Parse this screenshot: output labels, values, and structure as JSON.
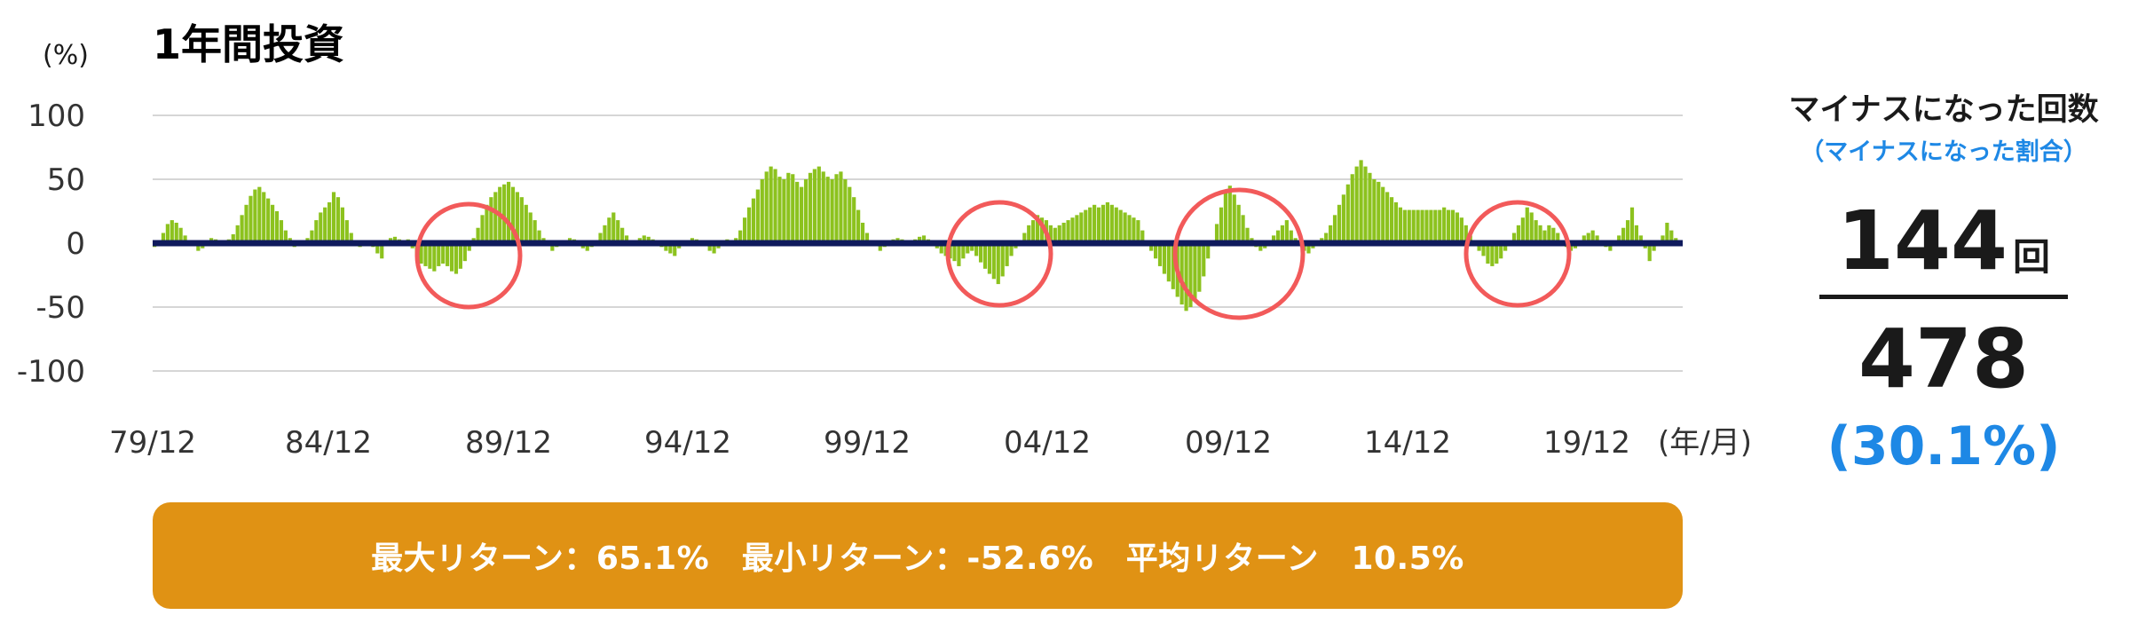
{
  "title": "1年間投資",
  "colors": {
    "bar": "#8cc21e",
    "zero_line": "#0f1a5c",
    "grid": "#d6d6d6",
    "circle": "#f25a5a",
    "stats_bg": "#e09214",
    "ratio_blue": "#1e88e5"
  },
  "chart_data": {
    "type": "bar",
    "title": "1年間投資",
    "ylabel": "(%)",
    "xlabel": "(年/月)",
    "ylim": [
      -100,
      100
    ],
    "yticks": [
      100,
      50,
      0,
      -50,
      -100
    ],
    "xtick_labels": [
      "79/12",
      "84/12",
      "89/12",
      "94/12",
      "99/12",
      "04/12",
      "09/12",
      "14/12",
      "19/12"
    ],
    "grid": true,
    "series": [
      {
        "values": [
          -3,
          2,
          8,
          15,
          18,
          16,
          12,
          6,
          2,
          -2,
          -6,
          -4,
          2,
          4,
          3,
          1,
          -2,
          3,
          7,
          14,
          22,
          30,
          37,
          42,
          44,
          40,
          35,
          30,
          25,
          18,
          10,
          4,
          -3,
          -2,
          1,
          4,
          10,
          18,
          24,
          28,
          32,
          40,
          36,
          28,
          18,
          8,
          -2,
          -3,
          1,
          0,
          -3,
          -8,
          -12,
          2,
          4,
          5,
          3,
          2,
          3,
          -4,
          -10,
          -16,
          -18,
          -20,
          -22,
          -18,
          -16,
          -18,
          -22,
          -24,
          -20,
          -14,
          -6,
          4,
          12,
          22,
          30,
          36,
          40,
          44,
          46,
          48,
          44,
          40,
          36,
          30,
          24,
          18,
          10,
          4,
          -2,
          -6,
          -3,
          1,
          2,
          4,
          3,
          1,
          -4,
          -6,
          -3,
          2,
          8,
          14,
          20,
          24,
          18,
          12,
          6,
          2,
          1,
          4,
          6,
          5,
          3,
          1,
          -3,
          -6,
          -8,
          -10,
          -4,
          1,
          2,
          4,
          3,
          2,
          -2,
          -6,
          -8,
          -4,
          2,
          3,
          2,
          4,
          10,
          20,
          28,
          35,
          42,
          50,
          56,
          60,
          58,
          52,
          50,
          55,
          54,
          48,
          44,
          50,
          55,
          58,
          60,
          56,
          52,
          50,
          54,
          56,
          50,
          44,
          36,
          26,
          16,
          8,
          2,
          -2,
          -6,
          -3,
          1,
          3,
          4,
          3,
          2,
          1,
          3,
          5,
          6,
          3,
          -2,
          -4,
          -8,
          -10,
          -12,
          -14,
          -18,
          -12,
          -8,
          -6,
          -10,
          -15,
          -20,
          -24,
          -28,
          -32,
          -26,
          -18,
          -10,
          -4,
          2,
          8,
          14,
          18,
          22,
          20,
          18,
          14,
          12,
          14,
          16,
          18,
          20,
          22,
          24,
          26,
          28,
          30,
          28,
          30,
          32,
          30,
          28,
          26,
          24,
          22,
          20,
          18,
          10,
          2,
          -6,
          -12,
          -18,
          -24,
          -30,
          -36,
          -42,
          -48,
          -53,
          -50,
          -45,
          -38,
          -26,
          -12,
          2,
          15,
          28,
          40,
          45,
          38,
          30,
          22,
          12,
          4,
          -3,
          -6,
          -4,
          2,
          6,
          10,
          14,
          18,
          10,
          4,
          -2,
          -6,
          -8,
          -4,
          2,
          4,
          8,
          14,
          22,
          30,
          38,
          46,
          54,
          60,
          65,
          60,
          55,
          50,
          48,
          44,
          40,
          36,
          32,
          28,
          26,
          26,
          26,
          26,
          26,
          26,
          26,
          26,
          26,
          28,
          26,
          26,
          24,
          20,
          14,
          6,
          -2,
          -6,
          -10,
          -16,
          -18,
          -16,
          -12,
          -6,
          2,
          8,
          14,
          20,
          28,
          24,
          18,
          14,
          10,
          14,
          12,
          8,
          2,
          -3,
          -6,
          -4,
          2,
          6,
          8,
          10,
          6,
          2,
          -3,
          -6,
          2,
          6,
          12,
          18,
          28,
          14,
          6,
          -4,
          -14,
          -6,
          2,
          6,
          16,
          10,
          4,
          2
        ]
      }
    ],
    "highlight_circles": [
      "88",
      "03",
      "09",
      "17"
    ]
  },
  "stats_bar": {
    "text": "最大リターン：65.1%　最小リターン：-52.6%　平均リターン　10.5%"
  },
  "side_panel": {
    "title": "マイナスになった回数",
    "subtitle": "（マイナスになった割合）",
    "count": "144",
    "count_unit": "回",
    "total": "478",
    "ratio": "(30.1%)"
  }
}
